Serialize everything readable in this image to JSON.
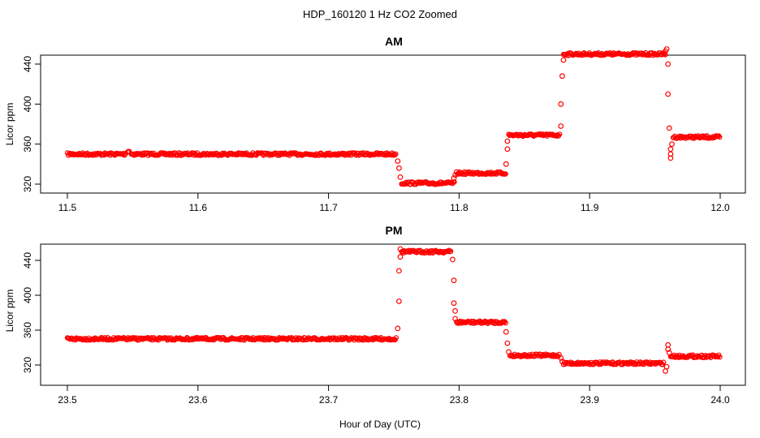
{
  "title": "HDP_160120  1 Hz CO2 Zoomed",
  "xlabel": "Hour of Day (UTC)",
  "colors": {
    "points": "#ff0000",
    "axes": "#000000",
    "background": "#ffffff"
  },
  "chart_data": [
    {
      "type": "scatter",
      "title": "AM",
      "ylabel": "Licor ppm",
      "xlim": [
        11.5,
        12.0
      ],
      "ylim": [
        318,
        462
      ],
      "xticks": [
        "11.5",
        "11.6",
        "11.7",
        "11.8",
        "11.9",
        "12.0"
      ],
      "yticks": [
        "320",
        "360",
        "400",
        "440"
      ],
      "segments": [
        {
          "x": [
            11.5,
            11.545
          ],
          "y": 350
        },
        {
          "x": [
            11.546,
            11.548
          ],
          "y": 353
        },
        {
          "x": [
            11.549,
            11.752
          ],
          "y": 350
        },
        {
          "x": [
            11.756,
            11.797
          ],
          "y": 321
        },
        {
          "x": [
            11.798,
            11.836
          ],
          "y": 331
        },
        {
          "x": [
            11.838,
            11.877
          ],
          "y": 369
        },
        {
          "x": [
            11.88,
            11.958
          ],
          "y": 450
        },
        {
          "x": [
            11.964,
            12.0
          ],
          "y": 367
        }
      ],
      "transitions": [
        {
          "x": 11.753,
          "y": 343
        },
        {
          "x": 11.754,
          "y": 336
        },
        {
          "x": 11.755,
          "y": 327
        },
        {
          "x": 11.796,
          "y": 326
        },
        {
          "x": 11.797,
          "y": 329
        },
        {
          "x": 11.836,
          "y": 340
        },
        {
          "x": 11.837,
          "y": 355
        },
        {
          "x": 11.837,
          "y": 363
        },
        {
          "x": 11.878,
          "y": 378
        },
        {
          "x": 11.878,
          "y": 400
        },
        {
          "x": 11.879,
          "y": 428
        },
        {
          "x": 11.88,
          "y": 444
        },
        {
          "x": 11.958,
          "y": 453
        },
        {
          "x": 11.959,
          "y": 455
        },
        {
          "x": 11.96,
          "y": 440
        },
        {
          "x": 11.96,
          "y": 410
        },
        {
          "x": 11.961,
          "y": 376
        },
        {
          "x": 11.962,
          "y": 355
        },
        {
          "x": 11.962,
          "y": 350
        },
        {
          "x": 11.962,
          "y": 346
        },
        {
          "x": 11.963,
          "y": 360
        }
      ]
    },
    {
      "type": "scatter",
      "title": "PM",
      "ylabel": "Licor ppm",
      "xlim": [
        23.5,
        24.0
      ],
      "ylim": [
        308,
        456
      ],
      "xticks": [
        "23.5",
        "23.6",
        "23.7",
        "23.8",
        "23.9",
        "24.0"
      ],
      "yticks": [
        "320",
        "360",
        "400",
        "440"
      ],
      "segments": [
        {
          "x": [
            23.5,
            23.752
          ],
          "y": 350
        },
        {
          "x": [
            23.756,
            23.794
          ],
          "y": 450
        },
        {
          "x": [
            23.798,
            23.836
          ],
          "y": 369
        },
        {
          "x": [
            23.839,
            23.877
          ],
          "y": 331
        },
        {
          "x": [
            23.88,
            23.957
          ],
          "y": 322
        },
        {
          "x": [
            23.962,
            24.0
          ],
          "y": 330
        }
      ],
      "transitions": [
        {
          "x": 23.753,
          "y": 362
        },
        {
          "x": 23.754,
          "y": 393
        },
        {
          "x": 23.754,
          "y": 428
        },
        {
          "x": 23.755,
          "y": 444
        },
        {
          "x": 23.755,
          "y": 453
        },
        {
          "x": 23.795,
          "y": 441
        },
        {
          "x": 23.796,
          "y": 417
        },
        {
          "x": 23.796,
          "y": 391
        },
        {
          "x": 23.797,
          "y": 382
        },
        {
          "x": 23.797,
          "y": 373
        },
        {
          "x": 23.836,
          "y": 358
        },
        {
          "x": 23.837,
          "y": 345
        },
        {
          "x": 23.838,
          "y": 335
        },
        {
          "x": 23.878,
          "y": 328
        },
        {
          "x": 23.879,
          "y": 324
        },
        {
          "x": 23.958,
          "y": 313
        },
        {
          "x": 23.959,
          "y": 318
        },
        {
          "x": 23.96,
          "y": 343
        },
        {
          "x": 23.96,
          "y": 338
        },
        {
          "x": 23.961,
          "y": 334
        }
      ]
    }
  ]
}
